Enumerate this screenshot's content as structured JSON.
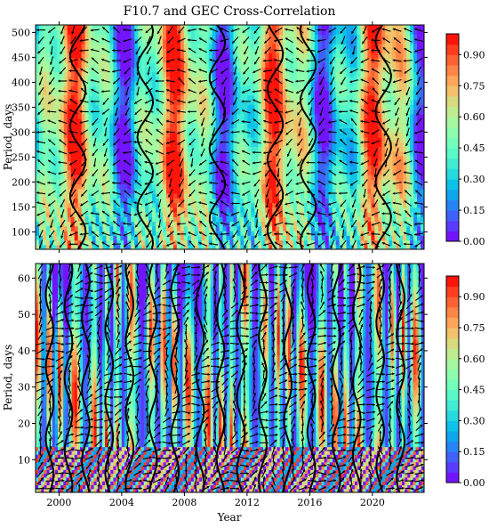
{
  "chart_data": [
    {
      "type": "heatmap",
      "title": "F10.7 and GEC Cross-Correlation",
      "xlabel": "",
      "ylabel": "Period, days",
      "xlim": [
        1998.5,
        2023.3
      ],
      "ylim": [
        65,
        515
      ],
      "xticks": [
        2000,
        2004,
        2008,
        2012,
        2016,
        2020
      ],
      "xtick_labels": [
        "",
        "",
        "",
        "",
        "",
        ""
      ],
      "yticks": [
        100,
        150,
        200,
        250,
        300,
        350,
        400,
        450,
        500
      ],
      "ytick_labels": [
        "100",
        "150",
        "200",
        "250",
        "300",
        "350",
        "400",
        "450",
        "500"
      ],
      "colorbar": {
        "range": [
          0.0,
          1.0
        ],
        "ticks": [
          0.0,
          0.15,
          0.3,
          0.45,
          0.6,
          0.75,
          0.9
        ],
        "tick_labels": [
          "0.00",
          "0.15",
          "0.30",
          "0.45",
          "0.60",
          "0.75",
          "0.90"
        ],
        "levels": 20,
        "colormap": "rainbow"
      },
      "contour_level": 0.6,
      "overlay": "phase arrows"
    },
    {
      "type": "heatmap",
      "title": "",
      "xlabel": "Year",
      "ylabel": "Period, days",
      "xlim": [
        1998.5,
        2023.3
      ],
      "ylim": [
        1,
        64
      ],
      "xticks": [
        2000,
        2004,
        2008,
        2012,
        2016,
        2020
      ],
      "xtick_labels": [
        "2000",
        "2004",
        "2008",
        "2012",
        "2016",
        "2020"
      ],
      "yticks": [
        10,
        20,
        30,
        40,
        50,
        60
      ],
      "ytick_labels": [
        "10",
        "20",
        "30",
        "40",
        "50",
        "60"
      ],
      "colorbar": {
        "range": [
          0.0,
          1.0
        ],
        "ticks": [
          0.0,
          0.15,
          0.3,
          0.45,
          0.6,
          0.75,
          0.9
        ],
        "tick_labels": [
          "0.00",
          "0.15",
          "0.30",
          "0.45",
          "0.60",
          "0.75",
          "0.90"
        ],
        "levels": 20,
        "colormap": "rainbow"
      },
      "contour_level": 0.6,
      "overlay": "phase arrows"
    }
  ],
  "colors": {
    "low": "#7f00ff",
    "mid": "#1ee3cf",
    "high": "#ff0000",
    "contour": "#000000"
  }
}
